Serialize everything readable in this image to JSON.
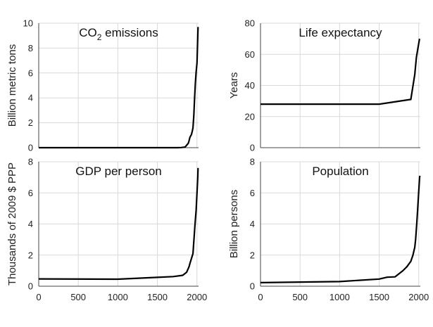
{
  "chart_data": [
    {
      "type": "line",
      "title": "CO2 emissions",
      "title_main": "CO",
      "title_sub": "2",
      "title_rest": " emissions",
      "ylabel": "Billion metric tons",
      "xlabel": "",
      "xlim": [
        0,
        2020
      ],
      "ylim": [
        0,
        10
      ],
      "yticks": [
        0,
        2,
        4,
        6,
        8,
        10
      ],
      "xticks": [],
      "grid": true,
      "series": [
        {
          "x": [
            0,
            1750,
            1800,
            1850,
            1870,
            1890,
            1900,
            1910,
            1920,
            1930,
            1940,
            1950,
            1960,
            1970,
            1980,
            1990,
            2000,
            2010,
            2014
          ],
          "y": [
            0,
            0,
            0.01,
            0.05,
            0.2,
            0.35,
            0.55,
            0.8,
            0.95,
            1.05,
            1.3,
            1.6,
            2.6,
            4.0,
            5.2,
            6.1,
            6.8,
            8.9,
            9.7
          ]
        }
      ]
    },
    {
      "type": "line",
      "title": "Life expectancy",
      "ylabel": "Years",
      "xlabel": "",
      "xlim": [
        0,
        2020
      ],
      "ylim": [
        0,
        80
      ],
      "yticks": [
        0,
        20,
        40,
        60,
        80
      ],
      "xticks": [],
      "grid": true,
      "series": [
        {
          "x": [
            0,
            1500,
            1900,
            1950,
            1970,
            1990,
            2010
          ],
          "y": [
            28,
            28,
            31,
            47,
            58,
            64,
            70
          ]
        }
      ]
    },
    {
      "type": "line",
      "title": "GDP per person",
      "ylabel": "Thousands of 2009 $ PPP",
      "xlabel": "",
      "xlim": [
        0,
        2020
      ],
      "ylim": [
        0,
        8
      ],
      "yticks": [
        0,
        2,
        4,
        6,
        8
      ],
      "xticks": [
        0,
        500,
        1000,
        1500,
        2000
      ],
      "grid": true,
      "series": [
        {
          "x": [
            0,
            1000,
            1500,
            1700,
            1820,
            1870,
            1900,
            1913,
            1950,
            1973,
            1990,
            2000,
            2010,
            2014
          ],
          "y": [
            0.47,
            0.45,
            0.57,
            0.62,
            0.7,
            0.9,
            1.25,
            1.5,
            2.1,
            3.8,
            4.9,
            6.0,
            7.0,
            7.6
          ]
        }
      ]
    },
    {
      "type": "line",
      "title": "Population",
      "ylabel": "Billion persons",
      "xlabel": "",
      "xlim": [
        0,
        2020
      ],
      "ylim": [
        0,
        8
      ],
      "yticks": [
        0,
        2,
        4,
        6,
        8
      ],
      "xticks": [
        0,
        500,
        1000,
        1500,
        2000
      ],
      "grid": true,
      "series": [
        {
          "x": [
            0,
            1000,
            1500,
            1600,
            1700,
            1800,
            1850,
            1900,
            1927,
            1950,
            1960,
            1975,
            1987,
            1999,
            2011,
            2015
          ],
          "y": [
            0.23,
            0.3,
            0.46,
            0.58,
            0.6,
            1.0,
            1.25,
            1.6,
            2.0,
            2.5,
            3.0,
            4.0,
            5.0,
            6.0,
            7.0,
            7.1
          ]
        }
      ]
    }
  ]
}
